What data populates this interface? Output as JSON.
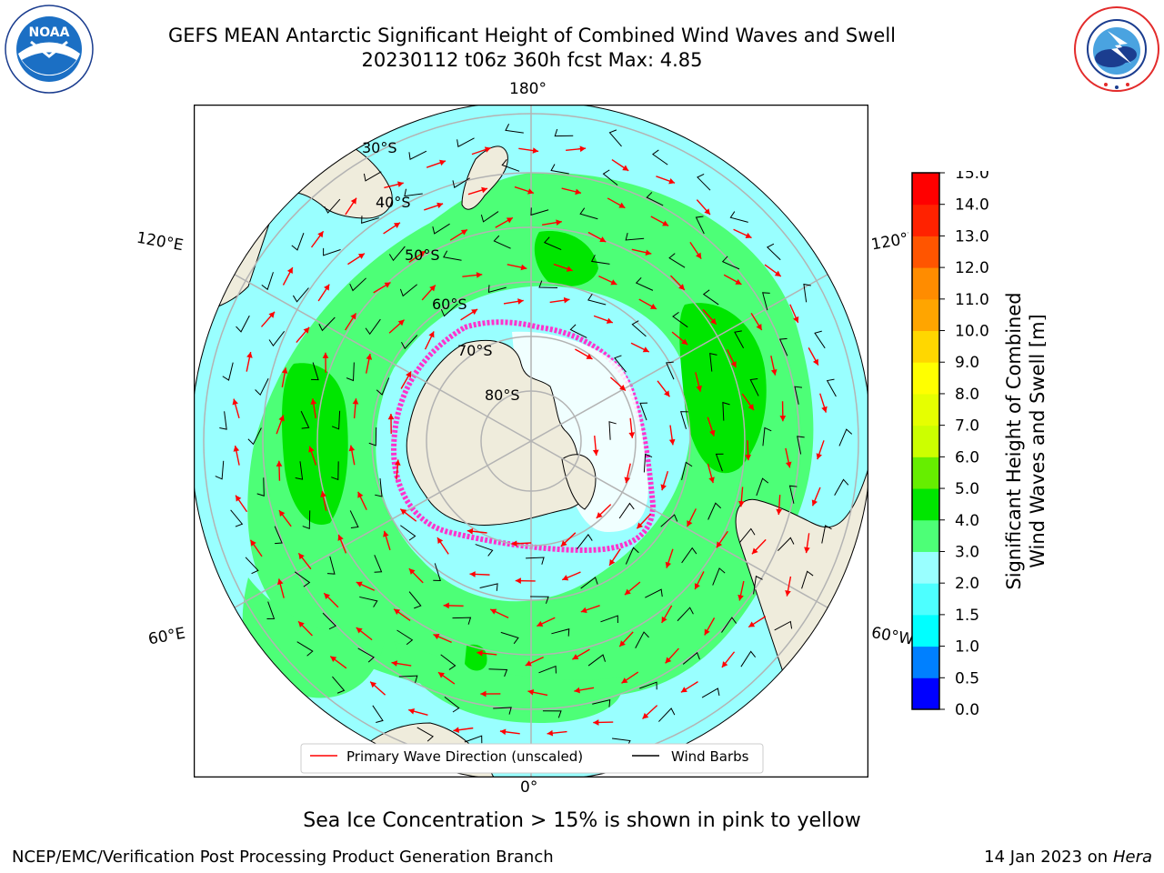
{
  "header": {
    "title_line1": "GEFS MEAN Antarctic Significant Height of Combined Wind Waves and Swell",
    "title_line2": "20230112 t06z 360h fcst   Max: 4.85"
  },
  "logos": {
    "noaa_text": "NOAA",
    "noaa_ring": "NATIONAL OCEANIC AND ATMOSPHERIC ADMINISTRATION · U.S. DEPARTMENT OF COMMERCE",
    "nws_ring": "NATIONAL WEATHER SERVICE"
  },
  "map": {
    "longitude_labels": {
      "top": "180°",
      "bottom": "0°",
      "left_upper": "120°E",
      "left_lower": "60°E",
      "right_upper": "120°W",
      "right_lower": "60°W"
    },
    "latitude_labels": [
      "30°S",
      "40°S",
      "50°S",
      "60°S",
      "70°S",
      "80°S"
    ],
    "legend": {
      "wave_direction": "Primary Wave Direction (unscaled)",
      "wind_barbs": "Wind Barbs"
    },
    "colors": {
      "land": "#efecdc",
      "ocean_low": "#99ffff",
      "band_mid": "#4dff77",
      "band_high": "#00e600",
      "ice_edge": "#ff33cc",
      "arrow": "#ff0000"
    }
  },
  "colorbar": {
    "label_line1": "Significant Height of Combined",
    "label_line2": "Wind Waves and Swell [m]",
    "ticks": [
      "0.0",
      "0.5",
      "1.0",
      "1.5",
      "2.0",
      "3.0",
      "4.0",
      "5.0",
      "6.0",
      "7.0",
      "8.0",
      "9.0",
      "10.0",
      "11.0",
      "12.0",
      "13.0",
      "14.0",
      "15.0"
    ],
    "colors": [
      "#0000ff",
      "#0080ff",
      "#00ffff",
      "#4dffff",
      "#99ffff",
      "#4dff77",
      "#00e600",
      "#66ee00",
      "#ccff00",
      "#e6ff00",
      "#ffff00",
      "#ffd700",
      "#ffa500",
      "#ff8c00",
      "#ff5500",
      "#ff2200",
      "#ff0000"
    ]
  },
  "footer": {
    "note": "Sea Ice Concentration > 15% is shown in pink to yellow",
    "credit": "NCEP/EMC/Verification Post Processing Product Generation Branch",
    "date": "14 Jan 2023 on",
    "host": "Hera"
  }
}
